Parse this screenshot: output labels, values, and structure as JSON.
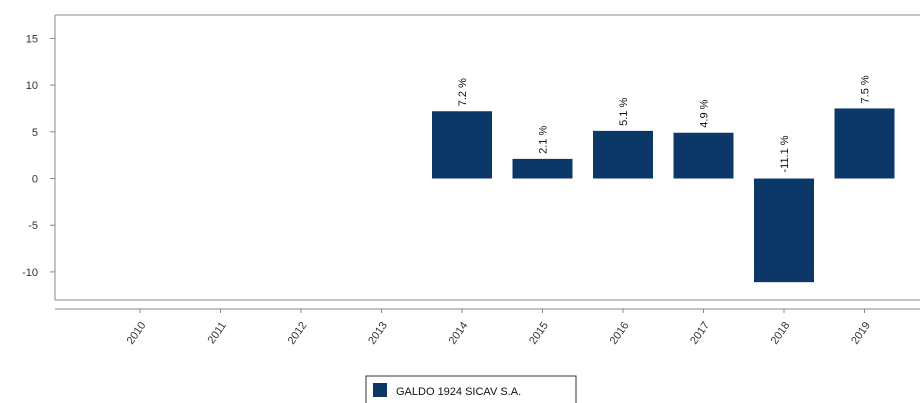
{
  "chart_data": {
    "type": "bar",
    "categories": [
      "2010",
      "2011",
      "2012",
      "2013",
      "2014",
      "2015",
      "2016",
      "2017",
      "2018",
      "2019"
    ],
    "series": [
      {
        "name": "GALDO 1924 SICAV S.A.",
        "color": "#0b3866",
        "values": [
          null,
          null,
          null,
          null,
          7.2,
          2.1,
          5.1,
          4.9,
          -11.1,
          7.5
        ],
        "labels": [
          "",
          "",
          "",
          "",
          "7.2 %",
          "2.1 %",
          "5.1 %",
          "4.9 %",
          "-11.1 %",
          "7.5 %"
        ]
      }
    ],
    "yticks": [
      "15",
      "10",
      "5",
      "0",
      "-5",
      "-10"
    ],
    "ytick_values": [
      15,
      10,
      5,
      0,
      -5,
      -10
    ],
    "ylim": [
      -13,
      17.5
    ],
    "grid": false,
    "legend": "bottom-center",
    "title": "",
    "xlabel": "",
    "ylabel": ""
  }
}
